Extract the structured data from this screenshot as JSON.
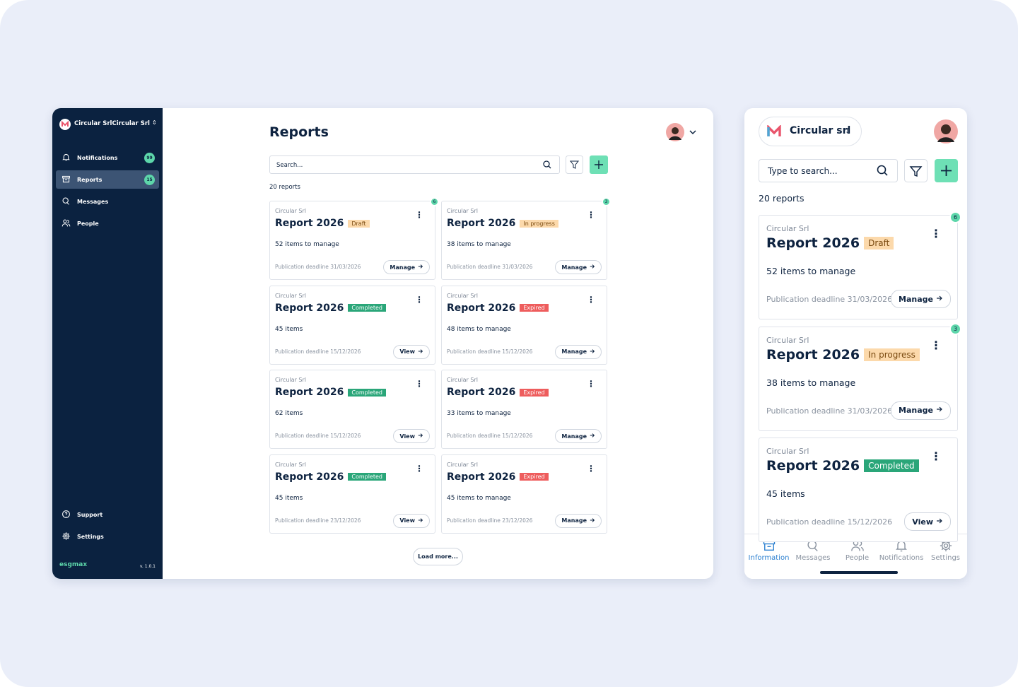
{
  "desktop": {
    "sidebar": {
      "org": "Circular SrlCircular Srl",
      "nav": [
        {
          "label": "Notifications",
          "badge": 99
        },
        {
          "label": "Reports",
          "badge": 15
        },
        {
          "label": "Messages"
        },
        {
          "label": "People"
        }
      ],
      "footer_nav": [
        {
          "label": "Support"
        },
        {
          "label": "Settings"
        }
      ],
      "brand": "esgmax",
      "version": "v. 1.0.1"
    },
    "main": {
      "title": "Reports",
      "search_placeholder": "Search...",
      "count": "20 reports",
      "cards": [
        {
          "org": "Circular Srl",
          "title": "Report 2026",
          "status": "Draft",
          "status_bg": "#fcd9ab",
          "status_fg": "#7a4a10",
          "items": "52 items to manage",
          "deadline": "Publication deadline 31/03/2026",
          "action": "Manage",
          "badge": 6
        },
        {
          "org": "Circular Srl",
          "title": "Report 2026",
          "status": "In progress",
          "status_bg": "#fcd9ab",
          "status_fg": "#7a4a10",
          "items": "38 items to manage",
          "deadline": "Publication deadline 31/03/2026",
          "action": "Manage",
          "badge": 3
        },
        {
          "org": "Circular Srl",
          "title": "Report 2026",
          "status": "Completed",
          "status_bg": "#2aa679",
          "status_fg": "#ffffff",
          "items": "45 items",
          "deadline": "Publication deadline 15/12/2026",
          "action": "View"
        },
        {
          "org": "Circular Srl",
          "title": "Report 2026",
          "status": "Expired",
          "status_bg": "#ee5d5d",
          "status_fg": "#ffffff",
          "items": "48 items to manage",
          "deadline": "Publication deadline 15/12/2026",
          "action": "Manage"
        },
        {
          "org": "Circular Srl",
          "title": "Report 2026",
          "status": "Completed",
          "status_bg": "#2aa679",
          "status_fg": "#ffffff",
          "items": "62 items",
          "deadline": "Publication deadline 15/12/2026",
          "action": "View"
        },
        {
          "org": "Circular Srl",
          "title": "Report 2026",
          "status": "Expired",
          "status_bg": "#ee5d5d",
          "status_fg": "#ffffff",
          "items": "33 items to manage",
          "deadline": "Publication deadline 15/12/2026",
          "action": "Manage"
        },
        {
          "org": "Circular Srl",
          "title": "Report 2026",
          "status": "Completed",
          "status_bg": "#2aa679",
          "status_fg": "#ffffff",
          "items": "45 items",
          "deadline": "Publication deadline 23/12/2026",
          "action": "View"
        },
        {
          "org": "Circular Srl",
          "title": "Report 2026",
          "status": "Expired",
          "status_bg": "#ee5d5d",
          "status_fg": "#ffffff",
          "items": "45 items to manage",
          "deadline": "Publication deadline 23/12/2026",
          "action": "Manage"
        }
      ],
      "load_more": "Load more..."
    }
  },
  "mobile": {
    "org": "Circular srl",
    "search_placeholder": "Type to search...",
    "count": "20 reports",
    "cards": [
      {
        "org": "Circular Srl",
        "title": "Report 2026",
        "status": "Draft",
        "status_bg": "#fcd9ab",
        "status_fg": "#7a4a10",
        "items": "52 items to manage",
        "deadline": "Publication deadline 31/03/2026",
        "action": "Manage",
        "badge": 6
      },
      {
        "org": "Circular Srl",
        "title": "Report 2026",
        "status": "In progress",
        "status_bg": "#fcd9ab",
        "status_fg": "#7a4a10",
        "items": "38 items to manage",
        "deadline": "Publication deadline 31/03/2026",
        "action": "Manage",
        "badge": 3
      },
      {
        "org": "Circular Srl",
        "title": "Report 2026",
        "status": "Completed",
        "status_bg": "#2aa679",
        "status_fg": "#ffffff",
        "items": "45 items",
        "deadline": "Publication deadline 15/12/2026",
        "action": "View"
      }
    ],
    "tabs": [
      "Information",
      "Messages",
      "People",
      "Notifications",
      "Settings"
    ]
  }
}
